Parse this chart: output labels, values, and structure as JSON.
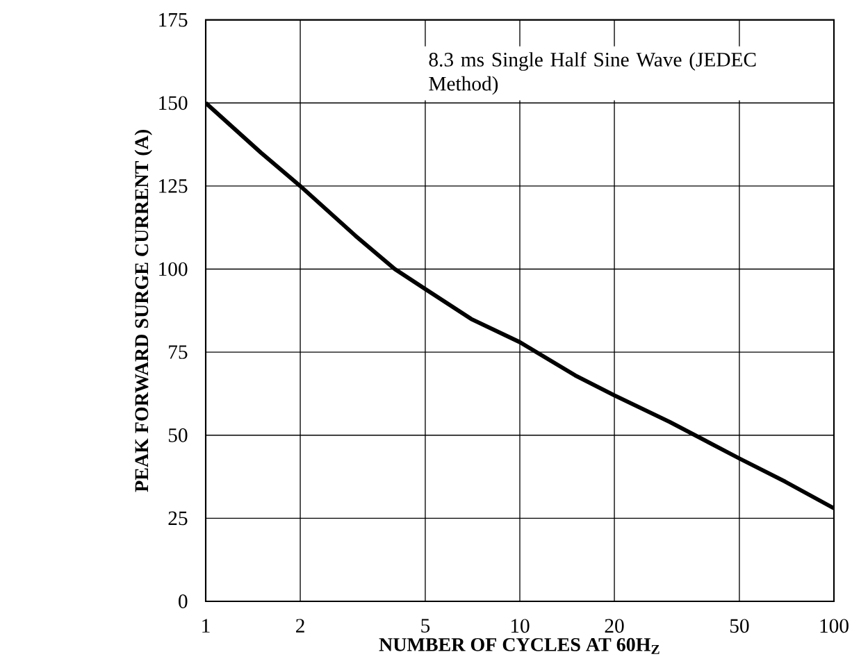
{
  "chart_data": {
    "type": "line",
    "xlabel": "NUMBER OF CYCLES AT 60H$_{Z}$",
    "ylabel": "PEAK FORWARD SURGE CURRENT (A)",
    "annotations": [
      "8.3 ms Single Half Sine Wave (JEDEC Method)"
    ],
    "log": "x",
    "grid": true,
    "marker": "none",
    "line_style": "solid",
    "xlim": [
      1,
      100
    ],
    "xticks": [
      1,
      2,
      5,
      10,
      20,
      50,
      100
    ],
    "ylim": [
      0,
      175
    ],
    "yticks": [
      0,
      25,
      50,
      75,
      100,
      125,
      150,
      175
    ],
    "series": [
      {
        "color": "#000000",
        "x": [
          1,
          1.5,
          2,
          3,
          4,
          5,
          7,
          10,
          15,
          20,
          30,
          50,
          70,
          100
        ],
        "values": [
          150,
          135,
          125,
          110,
          100,
          94,
          85,
          78,
          68,
          62,
          54,
          43,
          36,
          28
        ]
      }
    ]
  }
}
